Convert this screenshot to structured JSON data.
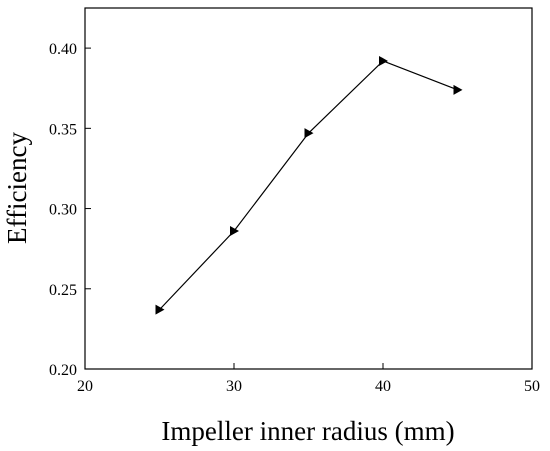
{
  "chart_data": {
    "type": "line",
    "x_label": "Impeller inner radius (mm)",
    "y_label": "Efficiency",
    "x": [
      25,
      30,
      35,
      40,
      45
    ],
    "series": [
      {
        "color": "#000000",
        "values": [
          0.237,
          0.286,
          0.347,
          0.392,
          0.374
        ]
      }
    ],
    "marker": "triangle-right",
    "xlim": [
      20,
      50
    ],
    "xticks": [
      20,
      30,
      40,
      50
    ],
    "ylim": [
      0.2,
      0.425
    ],
    "yticks": [
      {
        "value": 0.2,
        "label": "0.20"
      },
      {
        "value": 0.25,
        "label": "0.25"
      },
      {
        "value": 0.3,
        "label": "0.30"
      },
      {
        "value": 0.35,
        "label": "0.35"
      },
      {
        "value": 0.4,
        "label": "0.40"
      }
    ]
  }
}
